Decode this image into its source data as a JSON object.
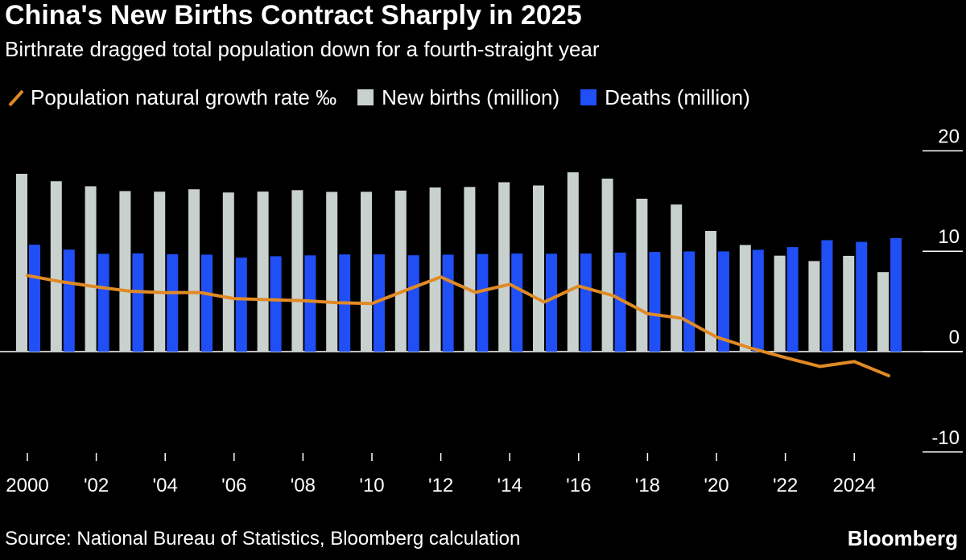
{
  "title": "China's New Births Contract Sharply in 2025",
  "subtitle": "Birthrate dragged total population down for a fourth-straight year",
  "legend": {
    "growth": "Population natural growth rate ‰",
    "births": "New births (million)",
    "deaths": "Deaths (million)"
  },
  "source": "Source: National Bureau of Statistics, Bloomberg calculation",
  "brand": "Bloomberg",
  "colors": {
    "births": "#c9d1cf",
    "deaths": "#1f4ff5",
    "growth": "#e08a25",
    "background": "#000000"
  },
  "chart_data": {
    "type": "bar",
    "years": [
      2000,
      2001,
      2002,
      2003,
      2004,
      2005,
      2006,
      2007,
      2008,
      2009,
      2010,
      2011,
      2012,
      2013,
      2014,
      2015,
      2016,
      2017,
      2018,
      2019,
      2020,
      2021,
      2022,
      2023,
      2024,
      2025
    ],
    "x_tick_labels": [
      "2000",
      "'02",
      "'04",
      "'06",
      "'08",
      "'10",
      "'12",
      "'14",
      "'16",
      "'18",
      "'20",
      "'22",
      "2024"
    ],
    "y_ticks": [
      20,
      10,
      0,
      -10
    ],
    "ylim": [
      -10,
      20
    ],
    "grid": true,
    "series": [
      {
        "name": "New births (million)",
        "type": "bar",
        "values": [
          17.71,
          16.97,
          16.47,
          15.99,
          15.93,
          16.17,
          15.85,
          15.94,
          16.08,
          15.91,
          15.92,
          16.04,
          16.35,
          16.4,
          16.87,
          16.55,
          17.86,
          17.23,
          15.23,
          14.65,
          12.02,
          10.62,
          9.56,
          9.02,
          9.54,
          7.92
        ]
      },
      {
        "name": "Deaths (million)",
        "type": "bar",
        "values": [
          10.65,
          10.16,
          9.74,
          9.78,
          9.7,
          9.66,
          9.36,
          9.5,
          9.59,
          9.68,
          9.69,
          9.6,
          9.66,
          9.72,
          9.77,
          9.75,
          9.77,
          9.86,
          9.93,
          9.98,
          9.98,
          10.14,
          10.41,
          11.1,
          10.93,
          11.31
        ]
      },
      {
        "name": "Population natural growth rate ‰",
        "type": "line",
        "values": [
          7.58,
          6.95,
          6.45,
          6.01,
          5.87,
          5.89,
          5.28,
          5.17,
          5.08,
          4.87,
          4.79,
          6.13,
          7.43,
          5.9,
          6.71,
          4.93,
          6.53,
          5.58,
          3.78,
          3.32,
          1.45,
          0.34,
          -0.6,
          -1.48,
          -0.99,
          -2.4
        ]
      }
    ]
  }
}
